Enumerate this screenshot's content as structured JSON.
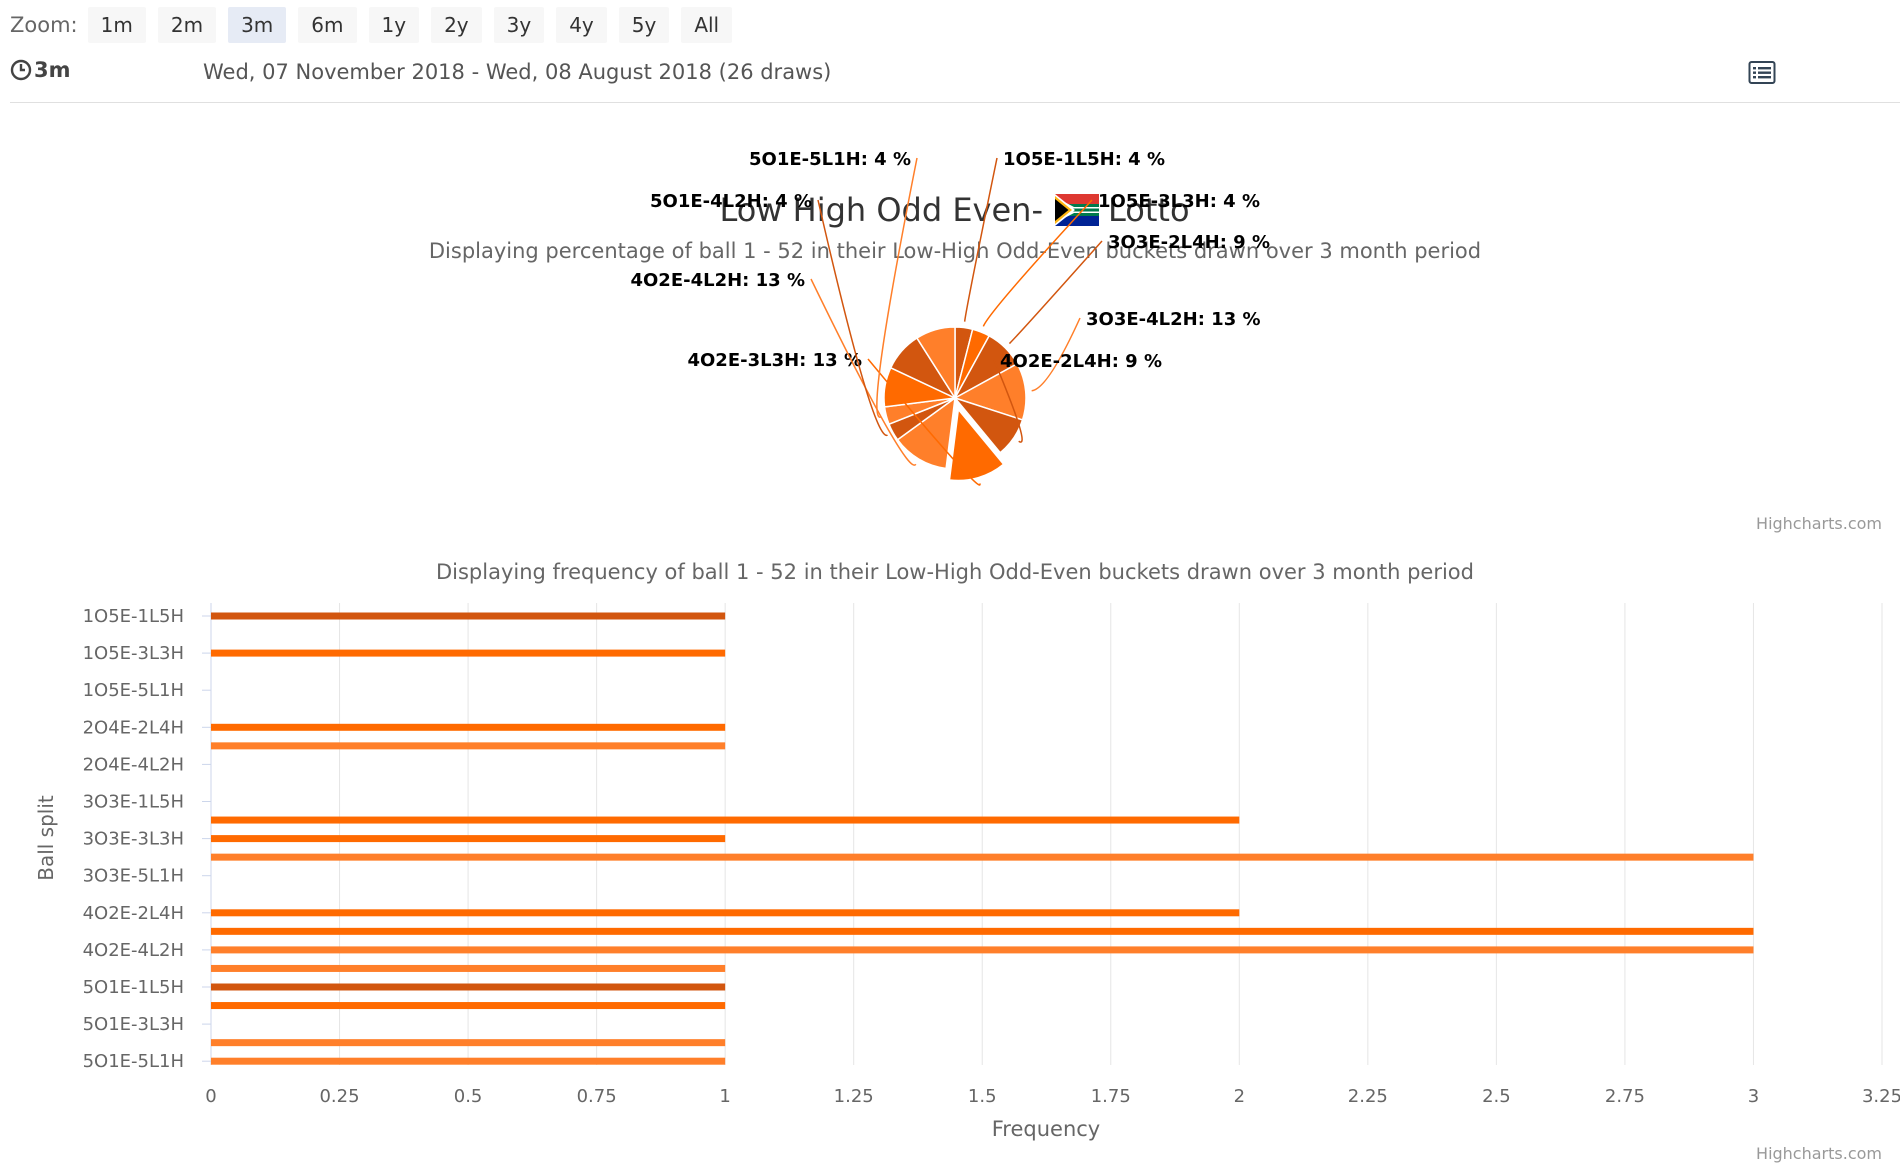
{
  "toolbar": {
    "zoom_label": "Zoom:",
    "buttons": [
      "1m",
      "2m",
      "3m",
      "6m",
      "1y",
      "2y",
      "3y",
      "4y",
      "5y",
      "All"
    ],
    "active": "3m",
    "period_label": "3m",
    "date_range": "Wed, 07 November 2018 - Wed, 08 August 2018 (26 draws)"
  },
  "colors": {
    "low_odd": "#ff7f2a",
    "high_odd": "#d2560f",
    "orange_mid": "#ff6a00",
    "grid": "#e6e6e6",
    "axis": "#ccd6eb"
  },
  "chart_data": [
    {
      "type": "pie",
      "title": "Low High Odd Even-",
      "title_suffix": "Lotto",
      "flag_icon": "south-africa-flag-icon",
      "subtitle": "Displaying percentage of ball 1 - 52 in their Low-High Odd-Even buckets drawn over 3 month period",
      "credits": "Highcharts.com",
      "labeled_slices": [
        {
          "label": "1O5E-1L5H",
          "percent": 4
        },
        {
          "label": "1O5E-3L3H",
          "percent": 4
        },
        {
          "label": "3O3E-2L4H",
          "percent": 9
        },
        {
          "label": "3O3E-4L2H",
          "percent": 13
        },
        {
          "label": "4O2E-2L4H",
          "percent": 9
        },
        {
          "label": "4O2E-3L3H",
          "percent": 13
        },
        {
          "label": "4O2E-4L2H",
          "percent": 13
        },
        {
          "label": "5O1E-4L2H",
          "percent": 4
        },
        {
          "label": "5O1E-5L1H",
          "percent": 4
        }
      ]
    },
    {
      "type": "bar",
      "subtitle": "Displaying frequency of ball 1 - 52 in their Low-High Odd-Even buckets drawn over 3 month period",
      "xlabel": "Frequency",
      "ylabel": "Ball split",
      "xlim": [
        0,
        3.25
      ],
      "x_ticks": [
        "0",
        "0.25",
        "0.5",
        "0.75",
        "1",
        "1.25",
        "1.5",
        "1.75",
        "2",
        "2.25",
        "2.5",
        "2.75",
        "3",
        "3.25"
      ],
      "categories": [
        "1O5E-1L5H",
        "1O5E-3L3H",
        "1O5E-5L1H",
        "2O4E-2L4H",
        "2O4E-4L2H",
        "3O3E-1L5H",
        "3O3E-3L3H",
        "3O3E-5L1H",
        "4O2E-2L4H",
        "4O2E-4L2H",
        "5O1E-1L5H",
        "5O1E-3L3H",
        "5O1E-5L1H"
      ],
      "bars": [
        {
          "pos": 0.0,
          "value": 1,
          "tone": "dark"
        },
        {
          "pos": 1.0,
          "value": 1,
          "tone": "mid"
        },
        {
          "pos": 3.0,
          "value": 1,
          "tone": "mid"
        },
        {
          "pos": 3.5,
          "value": 1,
          "tone": "light"
        },
        {
          "pos": 5.5,
          "value": 2,
          "tone": "mid"
        },
        {
          "pos": 6.0,
          "value": 1,
          "tone": "mid"
        },
        {
          "pos": 6.5,
          "value": 3,
          "tone": "light"
        },
        {
          "pos": 8.0,
          "value": 2,
          "tone": "mid"
        },
        {
          "pos": 8.5,
          "value": 3,
          "tone": "mid"
        },
        {
          "pos": 9.0,
          "value": 3,
          "tone": "light"
        },
        {
          "pos": 9.5,
          "value": 1,
          "tone": "light"
        },
        {
          "pos": 10.0,
          "value": 1,
          "tone": "dark"
        },
        {
          "pos": 10.5,
          "value": 1,
          "tone": "mid"
        },
        {
          "pos": 11.5,
          "value": 1,
          "tone": "light"
        },
        {
          "pos": 12.0,
          "value": 1,
          "tone": "light"
        }
      ],
      "credits": "Highcharts.com"
    }
  ]
}
